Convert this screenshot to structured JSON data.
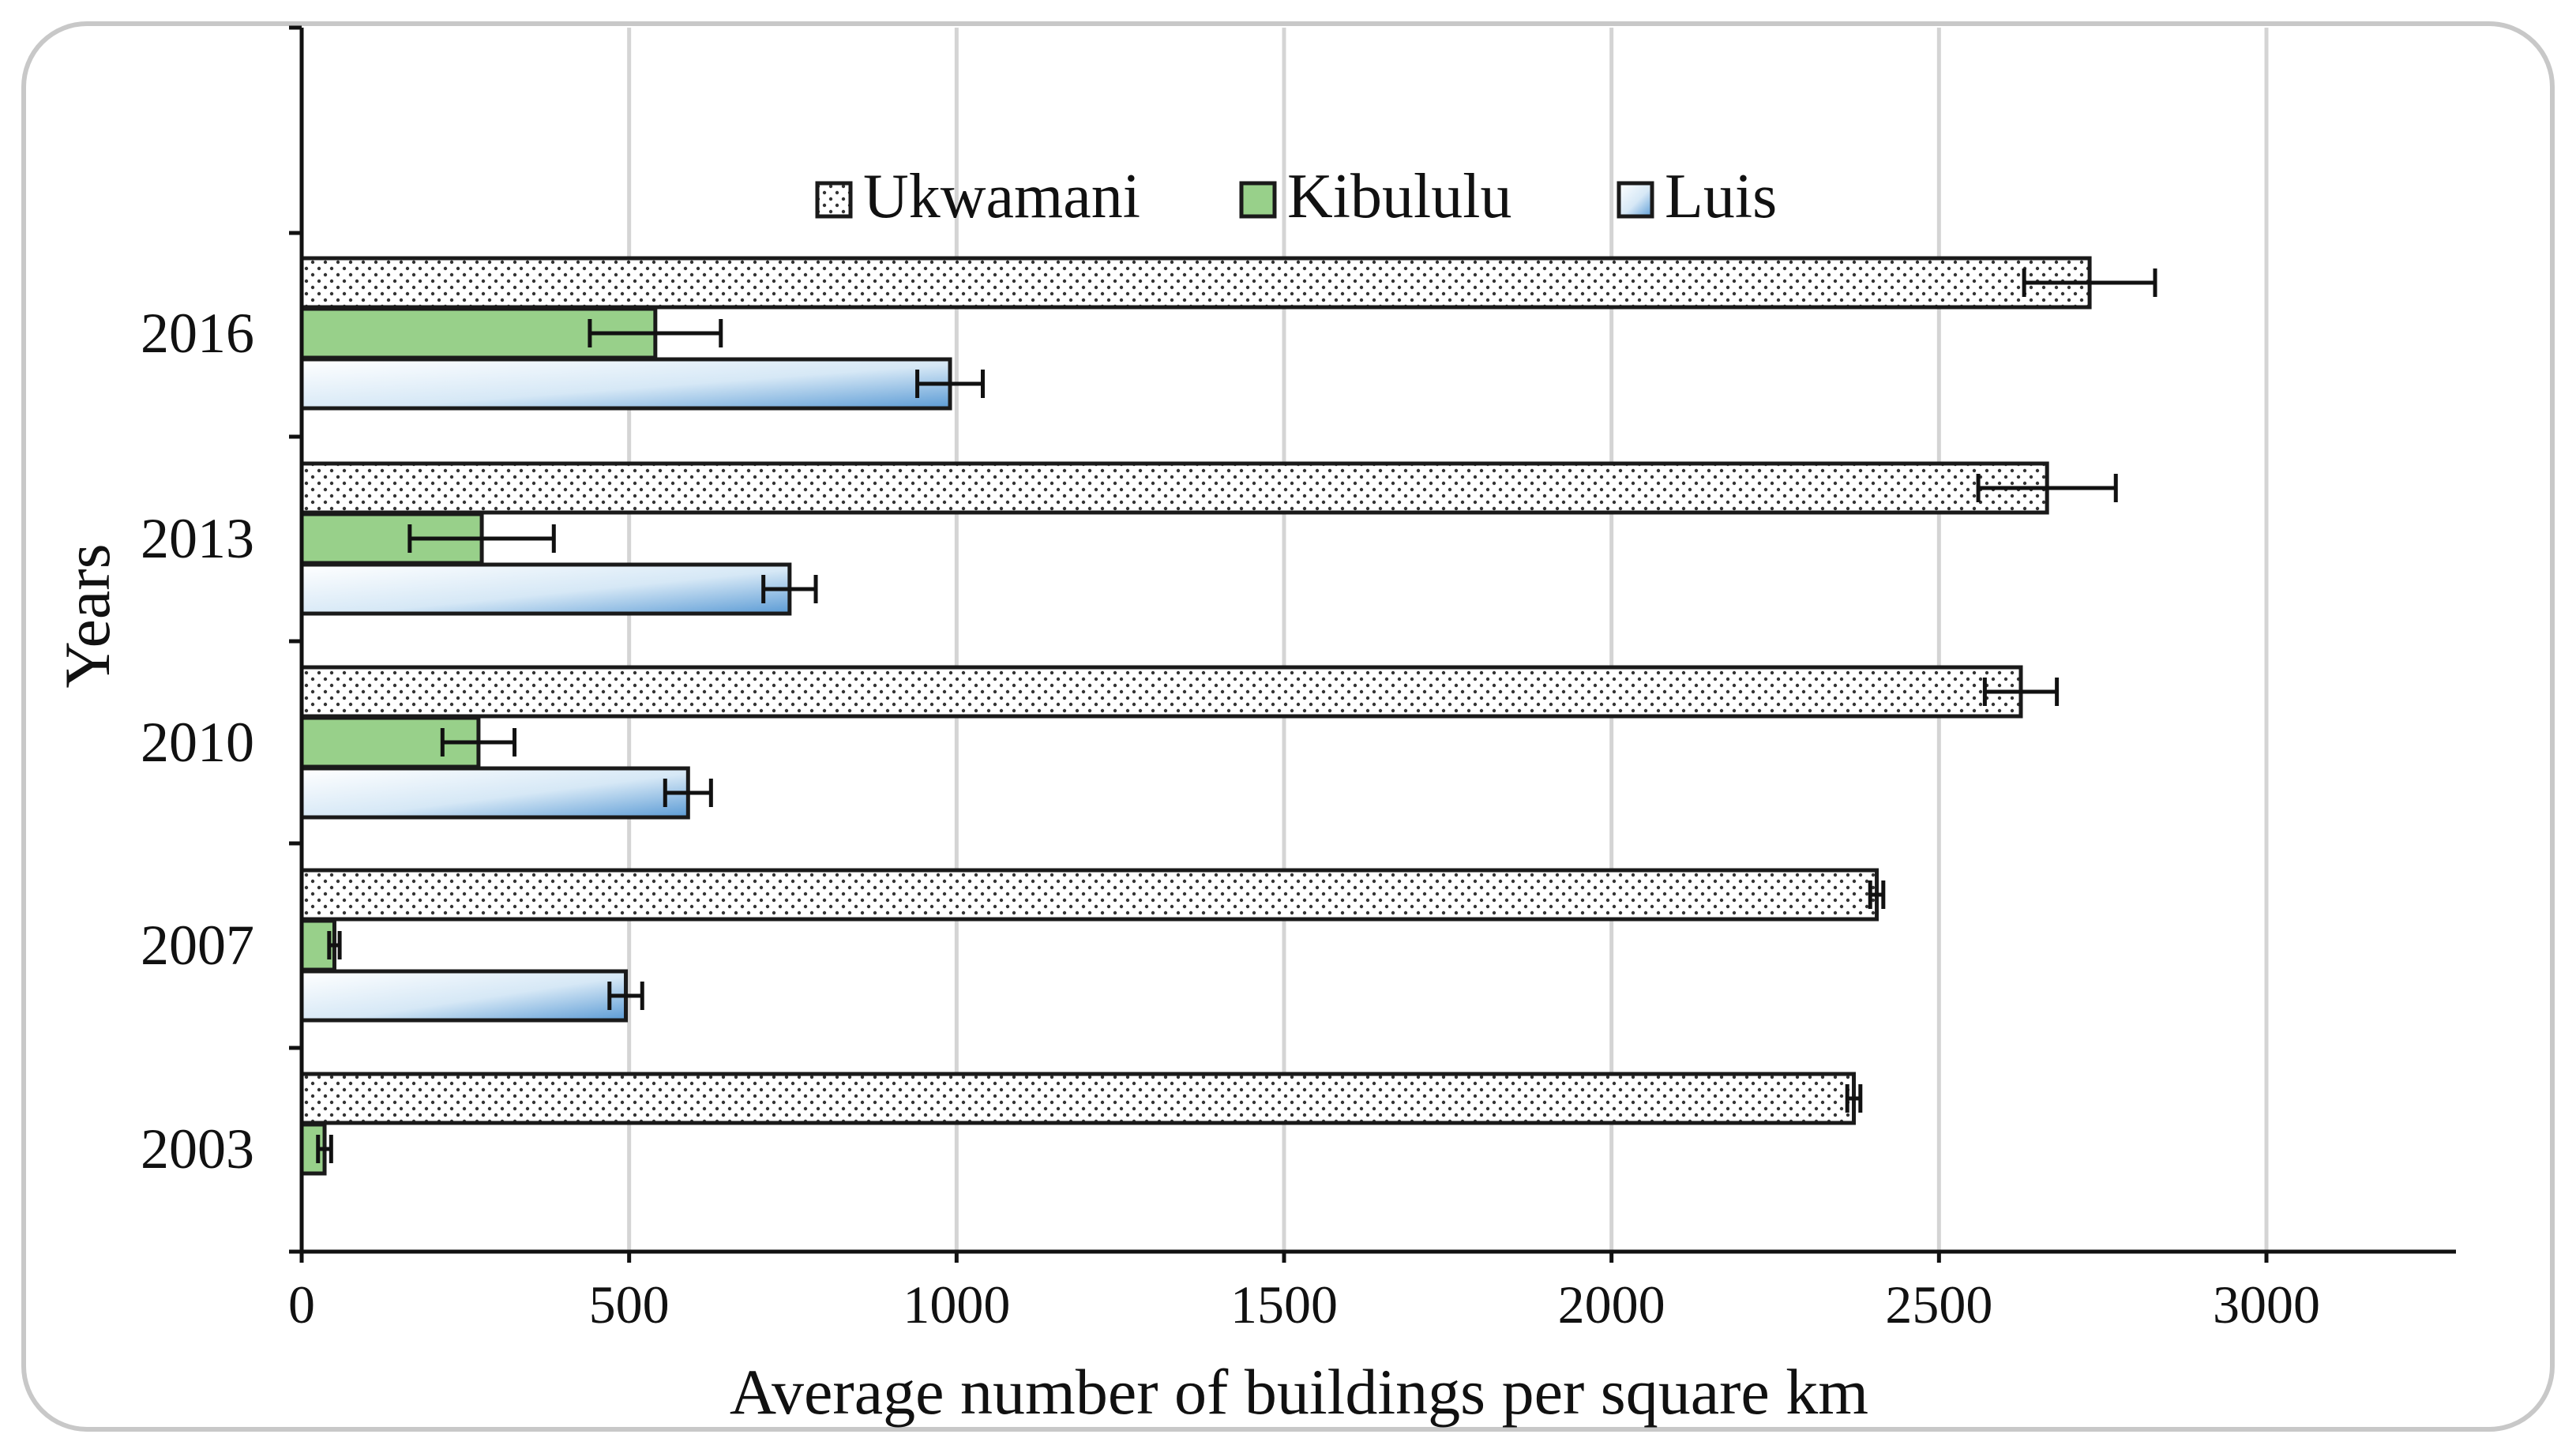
{
  "chart_data": {
    "type": "bar",
    "orientation": "horizontal",
    "title": "",
    "xlabel": "Average number of buildings per square km",
    "ylabel": "Years",
    "xlim": [
      0,
      3300
    ],
    "xticks": [
      "0",
      "500",
      "1000",
      "1500",
      "2000",
      "2500",
      "3000"
    ],
    "xtick_values": [
      0,
      500,
      1000,
      1500,
      2000,
      2500,
      3000
    ],
    "categories": [
      "2016",
      "2013",
      "2010",
      "2007",
      "2003"
    ],
    "grid": "vertical",
    "legend_position": "top",
    "series": [
      {
        "name": "Ukwamani",
        "pattern": "dots",
        "values": [
          2730,
          2665,
          2625,
          2405,
          2370
        ],
        "errors": [
          100,
          105,
          55,
          10,
          10
        ]
      },
      {
        "name": "Kibululu",
        "pattern": "solid-green",
        "values": [
          540,
          275,
          270,
          50,
          35
        ],
        "errors": [
          100,
          110,
          55,
          8,
          10
        ]
      },
      {
        "name": "Luis",
        "pattern": "blue-gradient",
        "values": [
          990,
          745,
          590,
          495,
          null
        ],
        "errors": [
          50,
          40,
          35,
          25,
          null
        ]
      }
    ],
    "colors": {
      "kibululu_fill": "#98d08a",
      "luis_light": "#ffffff",
      "luis_dark": "#5b9bd5",
      "dots": "#333333",
      "grid": "#d4d4d4"
    }
  }
}
